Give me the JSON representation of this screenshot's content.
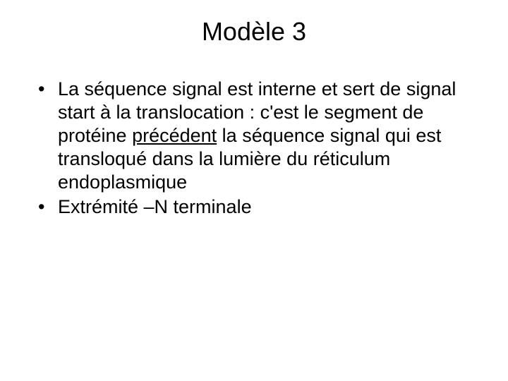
{
  "slide": {
    "title": "Modèle 3",
    "bullets": [
      {
        "pre": "La séquence signal est interne et sert de signal start à la translocation : c'est le segment de protéine ",
        "underlined": "précédent",
        "post": " la séquence signal qui est transloqué dans la lumière du réticulum endoplasmique"
      },
      {
        "pre": "Extrémité –N terminale",
        "underlined": "",
        "post": ""
      }
    ]
  },
  "style": {
    "background_color": "#ffffff",
    "text_color": "#000000",
    "title_fontsize": 36,
    "body_fontsize": 27,
    "font_family": "Arial"
  }
}
